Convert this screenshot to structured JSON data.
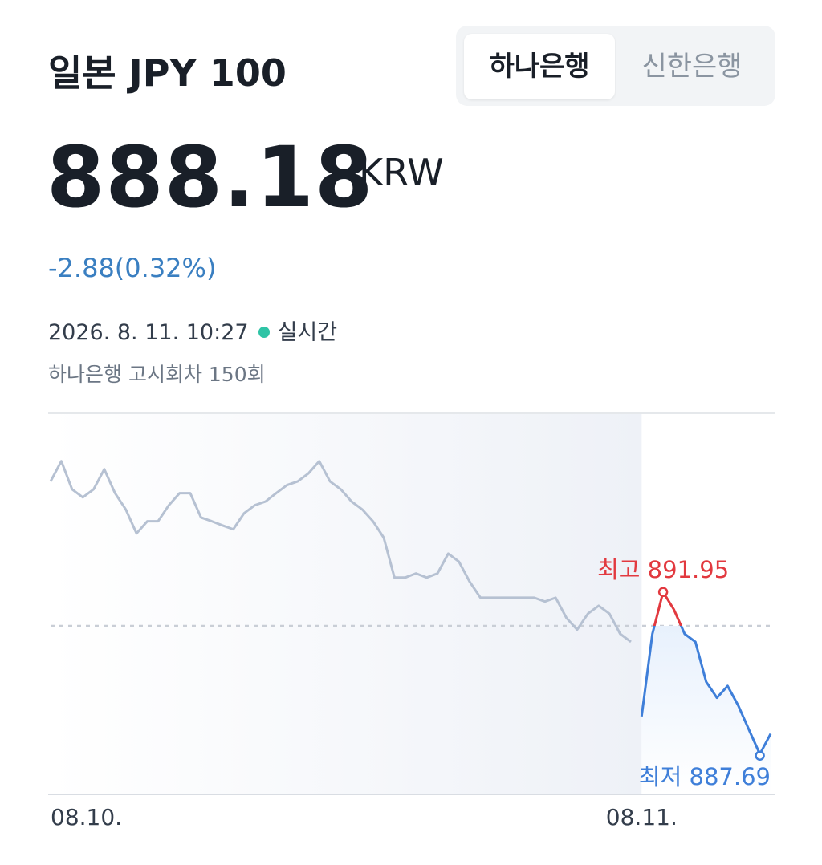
{
  "header": {
    "title": "일본 JPY 100",
    "tabs": [
      "하나은행",
      "신한은행"
    ]
  },
  "quote": {
    "price": "888.18",
    "unit": "KRW",
    "change": "-2.88",
    "change_pct": "(0.32%)",
    "timestamp": "2026. 8. 11. 10:27",
    "live": "실시간",
    "notice": "하나은행 고시회차 150회"
  },
  "chart_data": {
    "type": "line",
    "xlim": [
      0,
      67
    ],
    "xticks": [
      {
        "value": 0,
        "label": "08.10."
      },
      {
        "value": 55,
        "label": "08.11."
      }
    ],
    "ylim": [
      886.63,
      896.65
    ],
    "baseline": 891.06,
    "series": [
      {
        "color": "#b6c1d2",
        "values": [
          894.86,
          895.39,
          894.65,
          894.44,
          894.65,
          895.18,
          894.55,
          894.12,
          893.49,
          893.81,
          893.81,
          894.23,
          894.55,
          894.55,
          893.91,
          893.81,
          893.7,
          893.6,
          894.02,
          894.23,
          894.33,
          894.55,
          894.76,
          894.86,
          895.07,
          895.39,
          894.86,
          894.65,
          894.33,
          894.12,
          893.81,
          893.38,
          892.33,
          892.33,
          892.44,
          892.33,
          892.44,
          892.96,
          892.75,
          892.22,
          891.8,
          891.8,
          891.8,
          891.8,
          891.8,
          891.8,
          891.7,
          891.8,
          891.27,
          890.96,
          891.38,
          891.59,
          891.38,
          890.85,
          890.64,
          null,
          null,
          null,
          null,
          null,
          null,
          null,
          null,
          null,
          null,
          null,
          null,
          null
        ]
      },
      {
        "color": "#3f7fd9",
        "above_color": "#e2393f",
        "values": [
          null,
          null,
          null,
          null,
          null,
          null,
          null,
          null,
          null,
          null,
          null,
          null,
          null,
          null,
          null,
          null,
          null,
          null,
          null,
          null,
          null,
          null,
          null,
          null,
          null,
          null,
          null,
          null,
          null,
          null,
          null,
          null,
          null,
          null,
          null,
          null,
          null,
          null,
          null,
          null,
          null,
          null,
          null,
          null,
          null,
          null,
          null,
          null,
          null,
          null,
          null,
          null,
          null,
          null,
          null,
          888.68,
          890.85,
          891.95,
          891.49,
          890.85,
          890.64,
          889.59,
          889.17,
          889.48,
          888.96,
          888.32,
          887.69,
          888.22
        ]
      }
    ],
    "high": {
      "label": "최고",
      "value": 891.95,
      "color": "#e2393f"
    },
    "low": {
      "label": "최저",
      "value": 887.69,
      "color": "#3f7fd9"
    }
  }
}
